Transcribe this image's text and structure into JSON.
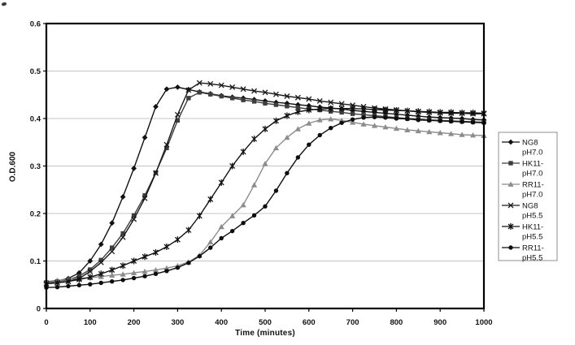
{
  "figure": {
    "background": "#ffffff",
    "plot_border_color": "#000000",
    "gridline_color": "#c4c4c4",
    "legend_border_color": "#8f8f8f"
  },
  "chart_data": {
    "type": "line",
    "title": "",
    "xlabel": "Time (minutes)",
    "ylabel": "O.D.600",
    "xlim": [
      0,
      1000
    ],
    "ylim": [
      0,
      0.6
    ],
    "x_tick_labels": [
      "0",
      "100",
      "200",
      "300",
      "400",
      "500",
      "600",
      "700",
      "800",
      "900",
      "1000"
    ],
    "y_tick_labels": [
      "0",
      "0.1",
      "0.2",
      "0.3",
      "0.4",
      "0.5",
      "0.6"
    ],
    "grid": "horizontal",
    "legend_position": "right",
    "x": [
      0,
      25,
      50,
      75,
      100,
      125,
      150,
      175,
      200,
      225,
      250,
      275,
      300,
      325,
      350,
      375,
      400,
      425,
      450,
      475,
      500,
      525,
      550,
      575,
      600,
      625,
      650,
      675,
      700,
      725,
      750,
      775,
      800,
      825,
      850,
      875,
      900,
      925,
      950,
      975,
      1000
    ],
    "series": [
      {
        "name": "NG8 pH7.0",
        "legend_lines": [
          "NG8",
          "pH7.0"
        ],
        "marker": "diamond",
        "color": "#111111",
        "values": [
          0.055,
          0.058,
          0.063,
          0.075,
          0.1,
          0.135,
          0.18,
          0.235,
          0.295,
          0.36,
          0.425,
          0.462,
          0.466,
          0.461,
          0.456,
          0.452,
          0.448,
          0.445,
          0.443,
          0.44,
          0.437,
          0.434,
          0.432,
          0.429,
          0.427,
          0.424,
          0.422,
          0.42,
          0.417,
          0.415,
          0.413,
          0.411,
          0.409,
          0.407,
          0.405,
          0.403,
          0.402,
          0.401,
          0.4,
          0.398,
          0.397
        ]
      },
      {
        "name": "HK11-pH7.0",
        "legend_lines": [
          "HK11-",
          "pH7.0"
        ],
        "marker": "square",
        "color": "#3d3d3d",
        "values": [
          0.055,
          0.057,
          0.06,
          0.068,
          0.082,
          0.102,
          0.128,
          0.158,
          0.196,
          0.238,
          0.286,
          0.338,
          0.396,
          0.443,
          0.455,
          0.451,
          0.447,
          0.443,
          0.439,
          0.436,
          0.432,
          0.429,
          0.426,
          0.423,
          0.42,
          0.418,
          0.415,
          0.413,
          0.41,
          0.408,
          0.406,
          0.404,
          0.402,
          0.4,
          0.399,
          0.397,
          0.396,
          0.395,
          0.394,
          0.393,
          0.392
        ]
      },
      {
        "name": "RR11-pH7.0",
        "legend_lines": [
          "RR11-",
          "pH7.0"
        ],
        "marker": "triangle",
        "color": "#8c8c8c",
        "values": [
          0.057,
          0.059,
          0.061,
          0.063,
          0.065,
          0.067,
          0.07,
          0.072,
          0.075,
          0.078,
          0.081,
          0.085,
          0.09,
          0.098,
          0.112,
          0.14,
          0.172,
          0.195,
          0.218,
          0.26,
          0.305,
          0.338,
          0.36,
          0.378,
          0.39,
          0.397,
          0.399,
          0.396,
          0.392,
          0.388,
          0.385,
          0.382,
          0.379,
          0.376,
          0.374,
          0.372,
          0.37,
          0.368,
          0.366,
          0.365,
          0.364
        ]
      },
      {
        "name": "NG8 pH5.5",
        "legend_lines": [
          "NG8",
          "pH5.5"
        ],
        "marker": "x",
        "color": "#1a1a1a",
        "values": [
          0.052,
          0.054,
          0.057,
          0.063,
          0.078,
          0.097,
          0.12,
          0.15,
          0.188,
          0.232,
          0.285,
          0.345,
          0.408,
          0.46,
          0.475,
          0.473,
          0.47,
          0.466,
          0.462,
          0.458,
          0.455,
          0.451,
          0.447,
          0.444,
          0.441,
          0.437,
          0.434,
          0.431,
          0.428,
          0.425,
          0.422,
          0.42,
          0.418,
          0.416,
          0.414,
          0.413,
          0.412,
          0.411,
          0.411,
          0.41,
          0.41
        ]
      },
      {
        "name": "HK11-pH5.5",
        "legend_lines": [
          "HK11-",
          "pH5.5"
        ],
        "marker": "star",
        "color": "#111111",
        "values": [
          0.052,
          0.054,
          0.057,
          0.061,
          0.066,
          0.073,
          0.081,
          0.09,
          0.1,
          0.109,
          0.118,
          0.13,
          0.145,
          0.165,
          0.195,
          0.23,
          0.265,
          0.3,
          0.33,
          0.357,
          0.378,
          0.395,
          0.406,
          0.414,
          0.418,
          0.42,
          0.421,
          0.421,
          0.421,
          0.42,
          0.419,
          0.418,
          0.417,
          0.416,
          0.415,
          0.414,
          0.413,
          0.413,
          0.412,
          0.412,
          0.411
        ]
      },
      {
        "name": "RR11-pH5.5",
        "legend_lines": [
          "RR11-",
          "pH5.5"
        ],
        "marker": "circle",
        "color": "#0d0d0d",
        "values": [
          0.044,
          0.045,
          0.047,
          0.049,
          0.051,
          0.054,
          0.057,
          0.06,
          0.064,
          0.068,
          0.073,
          0.079,
          0.086,
          0.096,
          0.11,
          0.128,
          0.148,
          0.163,
          0.18,
          0.196,
          0.215,
          0.248,
          0.285,
          0.318,
          0.345,
          0.365,
          0.38,
          0.391,
          0.398,
          0.402,
          0.403,
          0.402,
          0.4,
          0.399,
          0.397,
          0.396,
          0.395,
          0.394,
          0.393,
          0.392,
          0.391
        ]
      }
    ]
  }
}
